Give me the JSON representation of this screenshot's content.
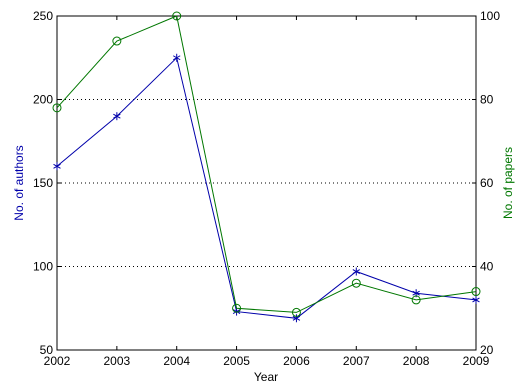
{
  "chart_data": {
    "type": "line",
    "x": [
      2002,
      2003,
      2004,
      2005,
      2006,
      2007,
      2008,
      2009
    ],
    "xlabel": "Year",
    "xlim": [
      2002,
      2009
    ],
    "xticks": [
      "2002",
      "2003",
      "2004",
      "2005",
      "2006",
      "2007",
      "2008",
      "2009"
    ],
    "left_axis": {
      "label": "No. of authors",
      "range": [
        50,
        250
      ],
      "ticks": [
        "50",
        "100",
        "150",
        "200",
        "250"
      ],
      "color": "#0000aa"
    },
    "right_axis": {
      "label": "No. of papers",
      "range": [
        20,
        100
      ],
      "ticks": [
        "20",
        "40",
        "60",
        "80",
        "100"
      ],
      "color": "#007700"
    },
    "grid": "horizontal dotted",
    "series": [
      {
        "axis": "left",
        "values": [
          160,
          190,
          225,
          73,
          69,
          97,
          84,
          80
        ],
        "marker": "asterisk",
        "color": "#0000aa"
      },
      {
        "axis": "right",
        "values": [
          78,
          94,
          100,
          30,
          29,
          36,
          32,
          34
        ],
        "marker": "circle",
        "color": "#007700"
      }
    ]
  }
}
